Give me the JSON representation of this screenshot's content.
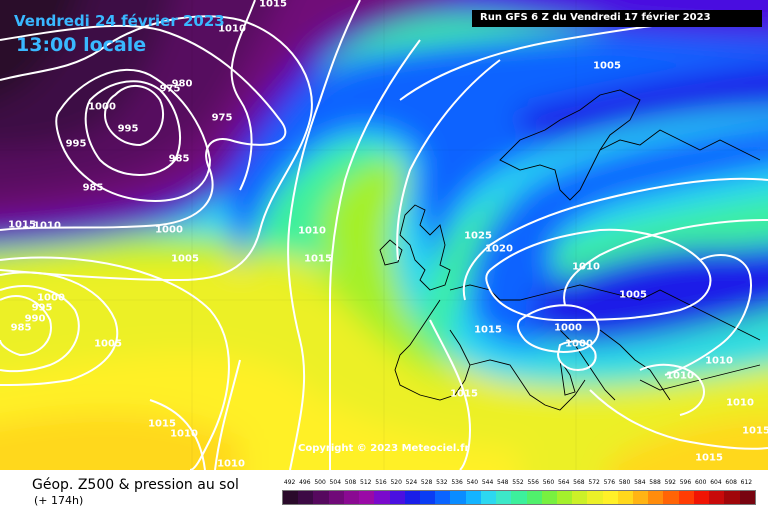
{
  "header": {
    "date": "Vendredi 24 février 2023",
    "time": "13:00 locale",
    "run": "Run GFS 6 Z du Vendredi 17 février 2023"
  },
  "footer": {
    "copyright": "Copyright © 2023 Meteociel.fr",
    "product": "Géop. Z500 & pression au sol",
    "forecast": "(+ 174h)"
  },
  "isobar_labels": [
    "1015",
    "1010",
    "1000",
    "995",
    "980",
    "975",
    "975",
    "985",
    "985",
    "995",
    "1015",
    "1010",
    "1000",
    "1005",
    "1010",
    "1015",
    "1000",
    "995",
    "990",
    "985",
    "1005",
    "1005",
    "1025",
    "1020",
    "1015",
    "1015",
    "1010",
    "1015",
    "1010",
    "1010",
    "1015",
    "1010",
    "1005",
    "1000",
    "1000",
    "1010",
    "1010",
    "1015"
  ],
  "legend": {
    "unit_values": [
      492,
      496,
      500,
      504,
      508,
      512,
      516,
      520,
      524,
      528,
      532,
      536,
      540,
      544,
      548,
      552,
      556,
      560,
      564,
      568,
      572,
      576,
      580,
      584,
      588,
      592,
      596,
      600,
      604,
      608,
      612
    ],
    "colors": [
      "#2a0a2a",
      "#3c0a44",
      "#56095e",
      "#700a78",
      "#8a0a92",
      "#9a0aa6",
      "#7a0acc",
      "#4a10e0",
      "#1a1ee8",
      "#0a3cf4",
      "#0a64ff",
      "#0a8cff",
      "#14b4ff",
      "#2cd8f0",
      "#3ce8c8",
      "#3cf09c",
      "#50f06c",
      "#78f040",
      "#a4f02c",
      "#ccf028",
      "#ecf028",
      "#fff028",
      "#ffd81c",
      "#ffb414",
      "#ff8c0c",
      "#ff6406",
      "#ff3c04",
      "#f01404",
      "#c80a0a",
      "#a0060a",
      "#780410"
    ]
  }
}
